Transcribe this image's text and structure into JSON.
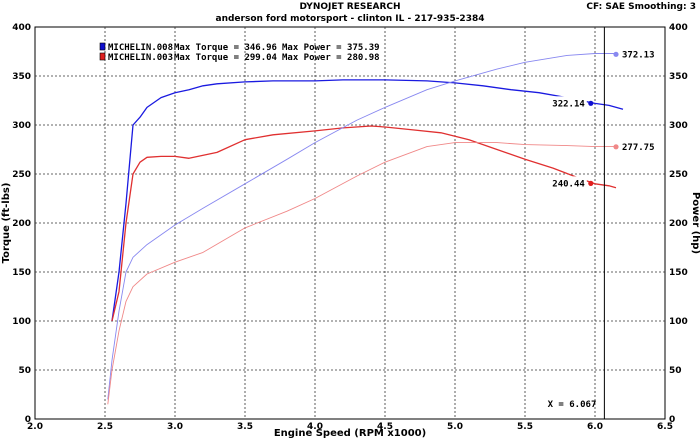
{
  "header": {
    "title": "DYNOJET RESEARCH",
    "subtitle": "anderson ford motorsport - clinton IL - 217-935-2384",
    "settings": "CF: SAE  Smoothing: 3"
  },
  "legend": {
    "entries": [
      {
        "name": "MICHELIN.008",
        "torque_label": "Max Torque = 346.96",
        "power_label": "Max Power = 375.39",
        "color": "#1010d0"
      },
      {
        "name": "MICHELIN.003",
        "torque_label": "Max Torque = 299.04",
        "power_label": "Max Power = 280.98",
        "color": "#e02020"
      }
    ]
  },
  "cursor": {
    "label": "X = 6.067",
    "x": 6.067
  },
  "chart_data": {
    "type": "line",
    "xlabel": "Engine Speed (RPM x1000)",
    "ylabel_left": "Torque (ft-lbs)",
    "ylabel_right": "Power (hp)",
    "xlim": [
      2.0,
      6.5
    ],
    "ylim_left": [
      0,
      400
    ],
    "ylim_right": [
      0,
      400
    ],
    "x_ticks": [
      "2.0",
      "2.5",
      "3.0",
      "3.5",
      "4.0",
      "4.5",
      "5.0",
      "5.5",
      "6.0",
      "6.5"
    ],
    "y_ticks_left": [
      "0",
      "50",
      "100",
      "150",
      "200",
      "250",
      "300",
      "350",
      "400"
    ],
    "y_ticks_right": [
      "0",
      "50",
      "100",
      "150",
      "200",
      "250",
      "300",
      "350",
      "400"
    ],
    "grid": true,
    "series": [
      {
        "name": "MICHELIN.008",
        "kind": "torque",
        "color": "#1010d0",
        "stroke": "#1a1ae0",
        "x": [
          2.55,
          2.6,
          2.65,
          2.7,
          2.75,
          2.8,
          2.9,
          3.0,
          3.1,
          3.2,
          3.3,
          3.5,
          3.7,
          4.0,
          4.2,
          4.5,
          4.8,
          5.0,
          5.2,
          5.4,
          5.6,
          5.8,
          6.0,
          6.1,
          6.2
        ],
        "y": [
          100,
          150,
          220,
          300,
          308,
          318,
          328,
          333,
          336,
          340,
          342,
          344,
          345,
          345,
          346,
          346,
          345,
          343,
          340,
          336,
          333,
          328,
          322,
          320,
          316
        ]
      },
      {
        "name": "MICHELIN.003",
        "kind": "torque",
        "color": "#e02020",
        "stroke": "#e03030",
        "x": [
          2.55,
          2.6,
          2.65,
          2.7,
          2.75,
          2.8,
          2.9,
          3.0,
          3.1,
          3.3,
          3.5,
          3.7,
          4.0,
          4.2,
          4.4,
          4.5,
          4.7,
          4.9,
          5.1,
          5.3,
          5.5,
          5.7,
          5.9,
          6.0,
          6.1,
          6.15
        ],
        "y": [
          100,
          130,
          200,
          250,
          262,
          267,
          268,
          268,
          266,
          272,
          285,
          290,
          294,
          297,
          299,
          298,
          295,
          292,
          285,
          275,
          265,
          256,
          245,
          240,
          238,
          236
        ]
      },
      {
        "name": "MICHELIN.008",
        "kind": "power",
        "color": "#1010d0",
        "stroke": "#8888f0",
        "x": [
          2.52,
          2.55,
          2.6,
          2.65,
          2.7,
          2.8,
          3.0,
          3.2,
          3.5,
          3.8,
          4.0,
          4.3,
          4.5,
          4.8,
          5.0,
          5.3,
          5.5,
          5.8,
          6.0,
          6.15
        ],
        "y": [
          20,
          60,
          110,
          150,
          165,
          178,
          198,
          215,
          240,
          265,
          282,
          305,
          318,
          336,
          345,
          357,
          364,
          371,
          373,
          373
        ]
      },
      {
        "name": "MICHELIN.003",
        "kind": "power",
        "color": "#e02020",
        "stroke": "#f08888",
        "x": [
          2.52,
          2.55,
          2.6,
          2.65,
          2.7,
          2.8,
          3.0,
          3.2,
          3.5,
          3.8,
          4.0,
          4.3,
          4.5,
          4.8,
          5.0,
          5.3,
          5.5,
          5.8,
          6.0,
          6.15
        ],
        "y": [
          15,
          50,
          90,
          120,
          135,
          148,
          160,
          170,
          195,
          212,
          225,
          248,
          262,
          278,
          282,
          282,
          280,
          279,
          278,
          278
        ]
      }
    ],
    "annotations": [
      {
        "text": "372.13",
        "x": 6.15,
        "y": 372.13,
        "color": "#8888f0",
        "series": "MICHELIN.008",
        "kind": "power"
      },
      {
        "text": "322.14",
        "x": 5.97,
        "y": 322.14,
        "color": "#1010d0",
        "series": "MICHELIN.008",
        "kind": "torque"
      },
      {
        "text": "277.75",
        "x": 6.15,
        "y": 277.75,
        "color": "#f08888",
        "series": "MICHELIN.003",
        "kind": "power"
      },
      {
        "text": "240.44",
        "x": 5.97,
        "y": 240.44,
        "color": "#e02020",
        "series": "MICHELIN.003",
        "kind": "torque"
      }
    ]
  }
}
